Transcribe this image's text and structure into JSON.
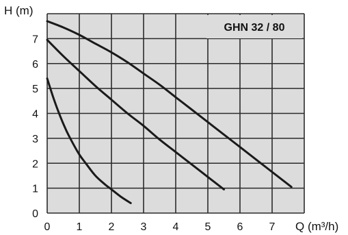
{
  "chart_data": {
    "type": "line",
    "title": "GHN 32 / 80",
    "xlabel": "Q (m³/h)",
    "ylabel": "H (m)",
    "xlim": [
      0,
      8
    ],
    "ylim": [
      0,
      8
    ],
    "x_ticks": [
      "0",
      "1",
      "2",
      "3",
      "4",
      "5",
      "6",
      "7"
    ],
    "y_ticks": [
      "0",
      "1",
      "2",
      "3",
      "4",
      "5",
      "6",
      "7"
    ],
    "grid": true,
    "background": "#dcdcdc",
    "series": [
      {
        "x": [
          0,
          0.2,
          0.4,
          0.6,
          0.8,
          1.0,
          1.2,
          1.5,
          1.8,
          2.0,
          2.3,
          2.6
        ],
        "y": [
          5.4,
          4.6,
          3.9,
          3.3,
          2.8,
          2.35,
          2.0,
          1.5,
          1.15,
          0.95,
          0.65,
          0.4
        ]
      },
      {
        "x": [
          0,
          0.5,
          1.0,
          1.5,
          2.0,
          2.5,
          3.0,
          3.5,
          4.0,
          4.5,
          5.0,
          5.5
        ],
        "y": [
          6.95,
          6.3,
          5.7,
          5.1,
          4.55,
          4.0,
          3.5,
          2.95,
          2.45,
          1.95,
          1.45,
          0.95
        ]
      },
      {
        "x": [
          0,
          0.5,
          1.0,
          1.5,
          2.0,
          2.5,
          3.0,
          3.5,
          4.0,
          4.5,
          5.0,
          5.5,
          6.0,
          6.5,
          7.0,
          7.6
        ],
        "y": [
          7.7,
          7.45,
          7.15,
          6.8,
          6.45,
          6.05,
          5.6,
          5.15,
          4.65,
          4.15,
          3.65,
          3.15,
          2.65,
          2.15,
          1.65,
          1.05
        ]
      }
    ]
  }
}
